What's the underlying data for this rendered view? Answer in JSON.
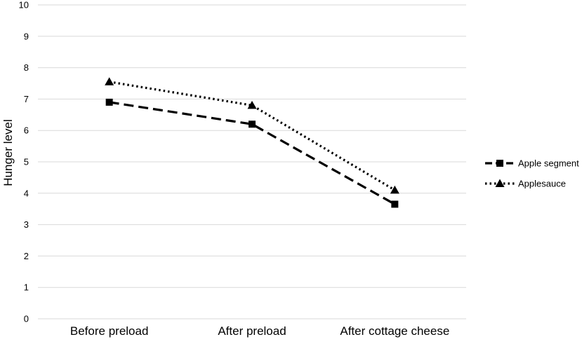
{
  "chart_data": {
    "type": "line",
    "title": "",
    "xlabel": "",
    "ylabel": "Hunger level",
    "ylim": [
      0,
      10
    ],
    "yticks": [
      0,
      1,
      2,
      3,
      4,
      5,
      6,
      7,
      8,
      9,
      10
    ],
    "grid": true,
    "legend_position": "right",
    "categories": [
      "Before preload",
      "After preload",
      "After cottage cheese"
    ],
    "series": [
      {
        "name": "Apple segment",
        "values": [
          6.9,
          6.2,
          3.65
        ],
        "line_style": "dashed",
        "marker": "square",
        "color": "#000000"
      },
      {
        "name": "Applesauce",
        "values": [
          7.55,
          6.8,
          4.1
        ],
        "line_style": "dotted",
        "marker": "triangle",
        "color": "#000000"
      }
    ]
  }
}
